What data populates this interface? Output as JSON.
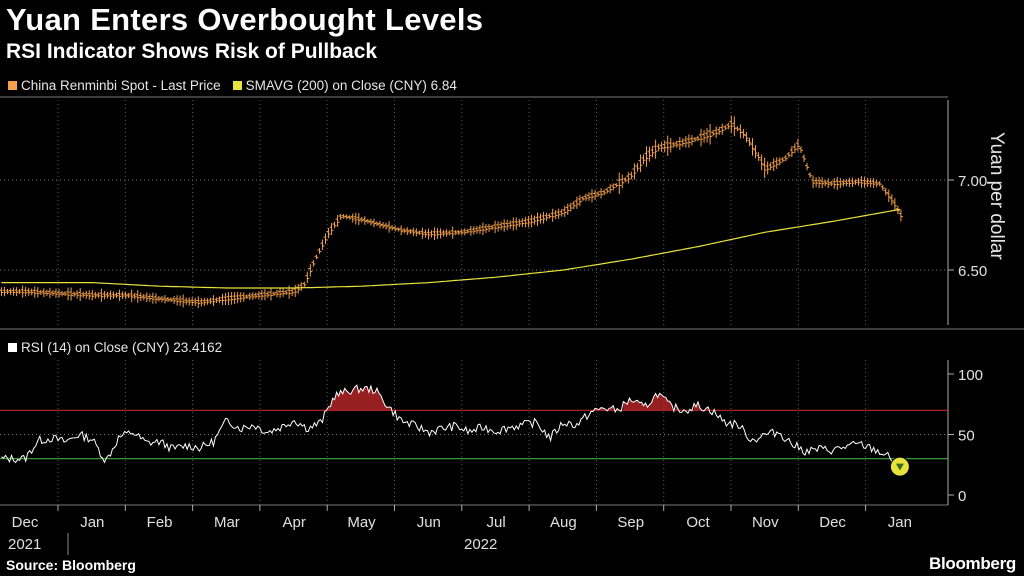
{
  "title": "Yuan Enters Overbought Levels",
  "subtitle": "RSI Indicator Shows Risk of Pullback",
  "legend": {
    "spot": "China Renminbi Spot - Last Price",
    "sma": "SMAVG (200)  on Close (CNY) 6.84",
    "rsi": "RSI (14)  on Close (CNY) 23.4162"
  },
  "colors": {
    "spot": "#f5a04a",
    "sma": "#e8e23c",
    "rsi": "#ffffff",
    "upper": "#c0262a",
    "lower": "#3fae3f",
    "fill": "#b02428",
    "marker": "#e8e23c"
  },
  "source": "Source: Bloomberg",
  "brand": "Bloomberg",
  "chart_data": [
    {
      "type": "line",
      "title": "Yuan Enters Overbought Levels",
      "ylabel": "Yuan per dollar",
      "ylim": [
        6.25,
        7.37
      ],
      "yticks": [
        6.5,
        7.0
      ],
      "ytick_labels": [
        "6.50",
        "7.00"
      ],
      "x_month_labels": [
        "Dec",
        "Jan",
        "Feb",
        "Mar",
        "Apr",
        "May",
        "Jun",
        "Jul",
        "Aug",
        "Sep",
        "Oct",
        "Nov",
        "Dec",
        "Jan"
      ],
      "x_year_labels": [
        "2021",
        "2022"
      ],
      "month_positions": [
        0,
        1,
        2,
        3,
        4,
        5,
        6,
        7,
        8,
        9,
        10,
        11,
        12,
        13
      ],
      "series": [
        {
          "name": "China Renminbi Spot - Last Price",
          "x": [
            0,
            0.5,
            1,
            1.5,
            2,
            2.3,
            2.6,
            3,
            3.5,
            4,
            4.15,
            4.3,
            4.5,
            4.7,
            5,
            5.3,
            5.6,
            6,
            6.5,
            7,
            7.5,
            8,
            8.3,
            8.6,
            9,
            9.2,
            9.4,
            9.7,
            10,
            10.3,
            10.5,
            10.7,
            10.9,
            11,
            11.3,
            11.5,
            11.7,
            12,
            12.4,
            12.7,
            12.9,
            13.05
          ],
          "values": [
            6.38,
            6.37,
            6.36,
            6.36,
            6.34,
            6.33,
            6.32,
            6.34,
            6.36,
            6.38,
            6.42,
            6.55,
            6.7,
            6.8,
            6.78,
            6.75,
            6.72,
            6.7,
            6.71,
            6.74,
            6.77,
            6.82,
            6.9,
            6.93,
            7.02,
            7.12,
            7.18,
            7.2,
            7.23,
            7.27,
            7.31,
            7.25,
            7.13,
            7.06,
            7.12,
            7.2,
            6.99,
            6.98,
            6.99,
            6.98,
            6.88,
            6.78
          ]
        },
        {
          "name": "SMAVG (200) on Close (CNY)",
          "x": [
            0,
            1,
            2,
            3,
            4,
            5,
            6,
            7,
            8,
            9,
            10,
            11,
            12,
            13.05
          ],
          "values": [
            6.43,
            6.43,
            6.41,
            6.4,
            6.4,
            6.41,
            6.43,
            6.46,
            6.5,
            6.56,
            6.63,
            6.71,
            6.77,
            6.84
          ]
        }
      ]
    },
    {
      "type": "line",
      "title": "RSI (14) on Close (CNY) 23.4162",
      "ylim": [
        -5,
        110
      ],
      "yticks": [
        0,
        50,
        100
      ],
      "ytick_labels": [
        "0",
        "50",
        "100"
      ],
      "overbought": 70,
      "oversold": 30,
      "series": [
        {
          "name": "RSI (14)",
          "x": [
            0,
            0.2,
            0.4,
            0.6,
            0.8,
            1.0,
            1.2,
            1.4,
            1.6,
            1.8,
            2.0,
            2.2,
            2.4,
            2.6,
            2.8,
            3.0,
            3.2,
            3.4,
            3.6,
            3.8,
            4.0,
            4.2,
            4.4,
            4.6,
            4.8,
            5.0,
            5.2,
            5.4,
            5.6,
            5.8,
            6.0,
            6.2,
            6.4,
            6.6,
            6.8,
            7.0,
            7.2,
            7.4,
            7.6,
            7.8,
            8.0,
            8.2,
            8.4,
            8.6,
            8.8,
            9.0,
            9.2,
            9.4,
            9.6,
            9.8,
            10.0,
            10.2,
            10.4,
            10.6,
            10.8,
            11.0,
            11.2,
            11.4,
            11.6,
            11.8,
            12.0,
            12.2,
            12.4,
            12.6,
            12.8,
            13.0
          ],
          "values": [
            30,
            45,
            47,
            44,
            50,
            46,
            28,
            48,
            52,
            43,
            44,
            38,
            41,
            39,
            44,
            62,
            55,
            58,
            52,
            56,
            62,
            55,
            60,
            82,
            86,
            88,
            87,
            73,
            61,
            57,
            52,
            55,
            57,
            52,
            56,
            53,
            56,
            58,
            60,
            47,
            60,
            58,
            68,
            72,
            70,
            79,
            72,
            84,
            73,
            70,
            74,
            70,
            60,
            58,
            45,
            50,
            52,
            42,
            36,
            38,
            37,
            40,
            42,
            38,
            33,
            23
          ]
        }
      ],
      "marker": {
        "x": 13.0,
        "value": 23.4
      }
    }
  ]
}
